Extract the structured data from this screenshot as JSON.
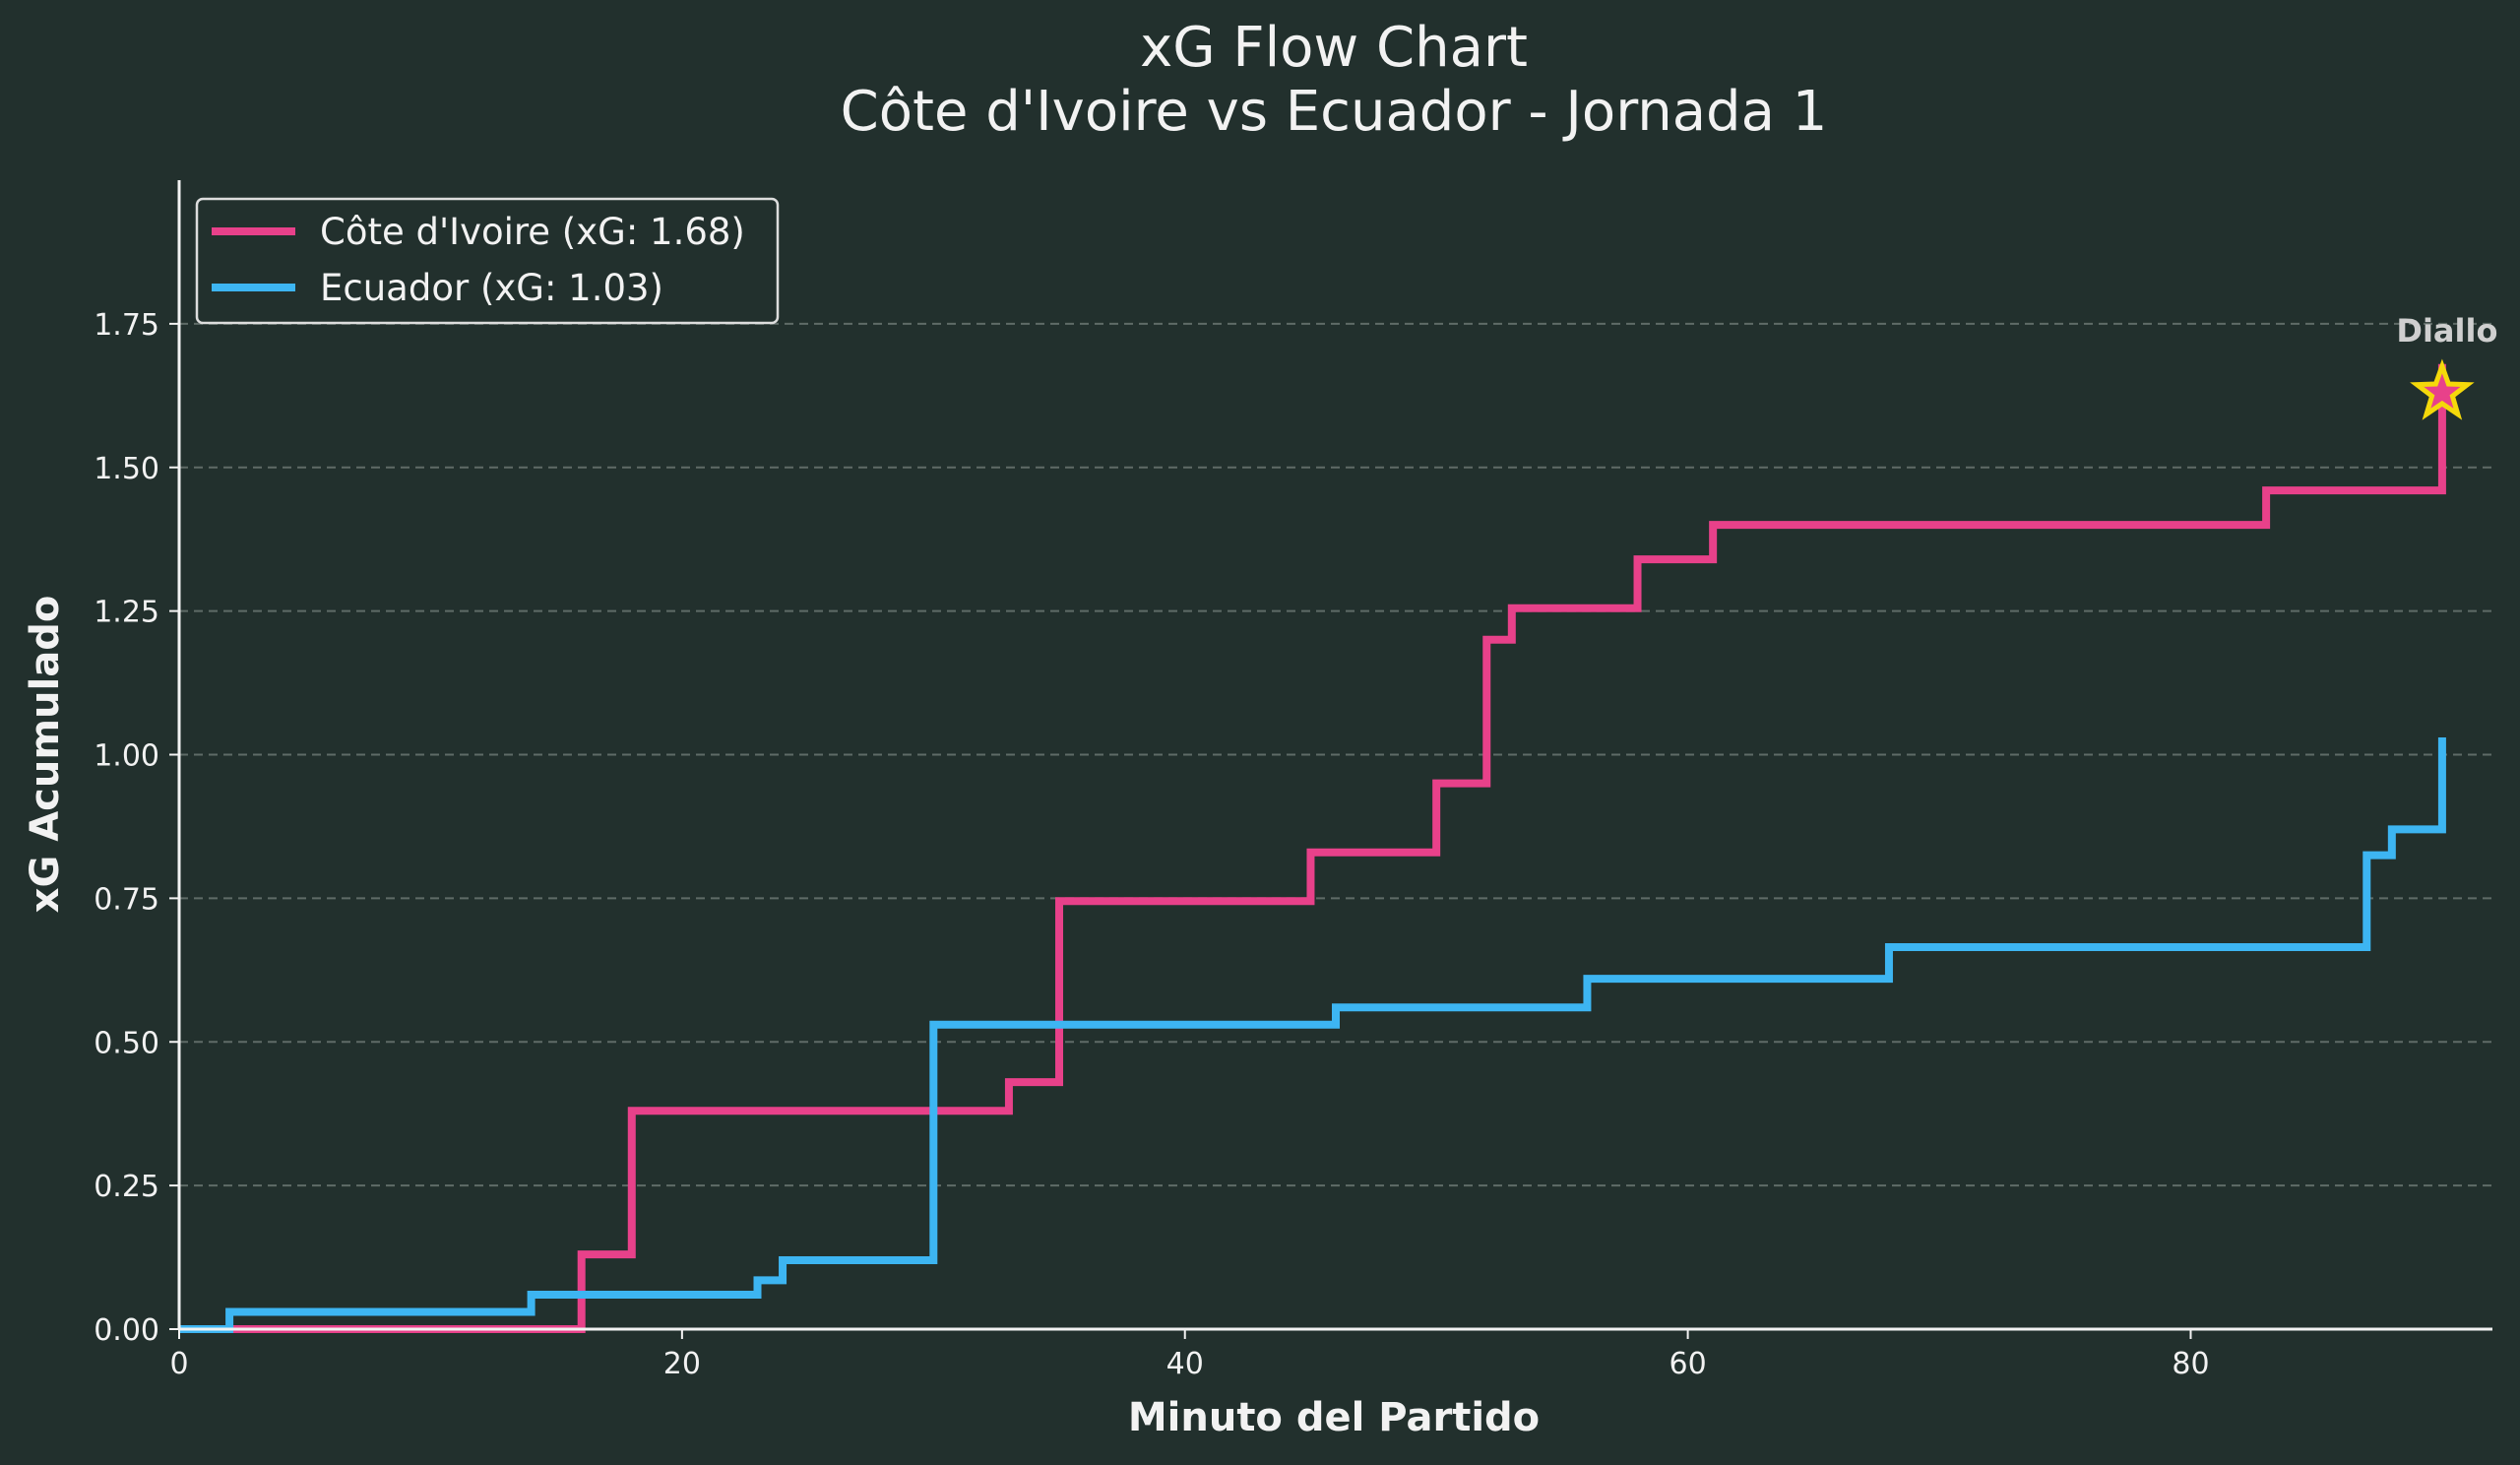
{
  "chart_data": {
    "type": "line",
    "step": true,
    "title": "xG Flow Chart",
    "subtitle": "Côte d'Ivoire vs Ecuador - Jornada 1",
    "xlabel": "Minuto del Partido",
    "ylabel": "xG Acumulado",
    "xlim": [
      0,
      92
    ],
    "ylim": [
      0,
      2.0
    ],
    "xticks": [
      0,
      20,
      40,
      60,
      80
    ],
    "xtick_labels": [
      "0",
      "20",
      "40",
      "60",
      "80"
    ],
    "yticks": [
      0,
      0.25,
      0.5,
      0.75,
      1.0,
      1.25,
      1.5,
      1.75
    ],
    "ytick_labels": [
      "0.00",
      "0.25",
      "0.50",
      "0.75",
      "1.00",
      "1.25",
      "1.50",
      "1.75"
    ],
    "grid": "y-dashed",
    "legend_position": "top-left",
    "series": [
      {
        "name": "Côte d'Ivoire (xG: 1.68)",
        "color": "#e8418a",
        "x": [
          0,
          16,
          18,
          33,
          35,
          45,
          50,
          52,
          53,
          58,
          61,
          83,
          90
        ],
        "y": [
          0,
          0.13,
          0.38,
          0.43,
          0.745,
          0.83,
          0.95,
          1.2,
          1.255,
          1.34,
          1.4,
          1.46,
          1.68
        ],
        "end_x": 90
      },
      {
        "name": "Ecuador (xG: 1.03)",
        "color": "#3db5f2",
        "x": [
          0,
          2,
          14,
          23,
          24,
          30,
          46,
          56,
          68,
          87,
          88,
          90
        ],
        "y": [
          0,
          0.03,
          0.06,
          0.085,
          0.12,
          0.53,
          0.56,
          0.61,
          0.665,
          0.825,
          0.87,
          1.03
        ],
        "end_x": 90
      }
    ],
    "annotations": [
      {
        "text": "Diallo",
        "x": 90,
        "y": 1.63,
        "marker": "star",
        "color": "#f5d90a"
      }
    ]
  }
}
